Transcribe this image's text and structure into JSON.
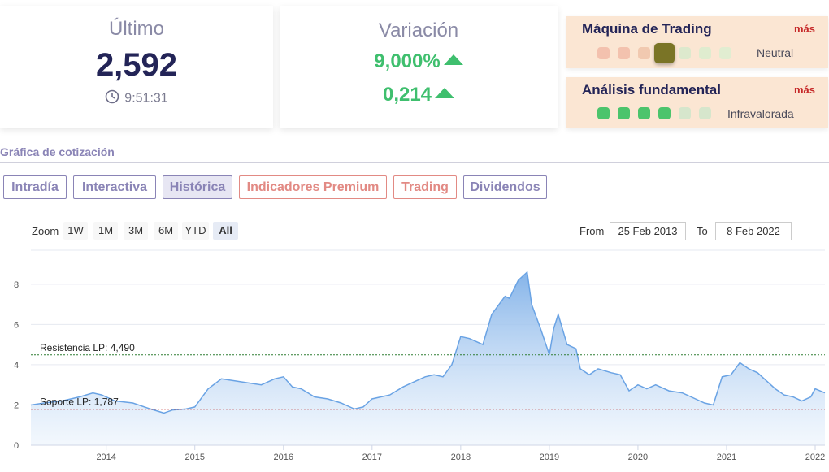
{
  "ultimo": {
    "title": "Último",
    "value": "2,592",
    "time": "9:51:31"
  },
  "variacion": {
    "title": "Variación",
    "percent": "9,000%",
    "absolute": "0,214"
  },
  "trading_machine": {
    "title": "Máquina de Trading",
    "more": "más",
    "status": "Neutral",
    "level": 4,
    "level_max": 7,
    "dot_colors": [
      "#f3c1ae",
      "#f3c2ae",
      "#f1c9b0",
      "#7a7426",
      "#dde9cd",
      "#dfeccf",
      "#e1edd1"
    ]
  },
  "fundamental": {
    "title": "Análisis fundamental",
    "more": "más",
    "status": "Infravalorada",
    "level": 4,
    "level_max": 6,
    "dot_colors": [
      "#4cc46c",
      "#4cc46c",
      "#4cc46c",
      "#4cc46c",
      "#d6e6cc",
      "#d6e6cc"
    ]
  },
  "section_title": "Gráfica de cotización",
  "tabs": [
    {
      "label": "Intradía",
      "style": "purple",
      "active": false
    },
    {
      "label": "Interactiva",
      "style": "purple",
      "active": false
    },
    {
      "label": "Histórica",
      "style": "purple",
      "active": true
    },
    {
      "label": "Indicadores Premium",
      "style": "red",
      "active": false
    },
    {
      "label": "Trading",
      "style": "red",
      "active": false
    },
    {
      "label": "Dividendos",
      "style": "purple",
      "active": false
    }
  ],
  "zoom": {
    "label": "Zoom",
    "buttons": [
      "1W",
      "1M",
      "3M",
      "6M",
      "YTD",
      "All"
    ],
    "selected": "All"
  },
  "range": {
    "from_label": "From",
    "from": "25 Feb 2013",
    "to_label": "To",
    "to": "8 Feb 2022"
  },
  "colors": {
    "accent": "#232457",
    "up": "#3fbf6e",
    "line": "#7fb0e8",
    "resistance": "#2e7d32",
    "support": "#b71c1c"
  },
  "chart_data": {
    "type": "area",
    "x_ticks": [
      "2014",
      "2015",
      "2016",
      "2017",
      "2018",
      "2019",
      "2020",
      "2021",
      "2022"
    ],
    "y_ticks": [
      0,
      2,
      4,
      6,
      8
    ],
    "ylim": [
      0,
      8.8
    ],
    "xlim": [
      2013.15,
      2022.11
    ],
    "grid": true,
    "series": [
      {
        "x": [
          2013.15,
          2013.3,
          2013.5,
          2013.7,
          2013.85,
          2013.95,
          2014.1,
          2014.3,
          2014.5,
          2014.65,
          2014.75,
          2014.9,
          2015.0,
          2015.15,
          2015.3,
          2015.45,
          2015.6,
          2015.75,
          2015.9,
          2016.0,
          2016.1,
          2016.2,
          2016.35,
          2016.5,
          2016.65,
          2016.8,
          2016.9,
          2017.0,
          2017.2,
          2017.35,
          2017.5,
          2017.6,
          2017.7,
          2017.8,
          2017.9,
          2018.0,
          2018.1,
          2018.25,
          2018.35,
          2018.45,
          2018.5,
          2018.55,
          2018.65,
          2018.7,
          2018.75,
          2018.8,
          2018.9,
          2019.0,
          2019.05,
          2019.1,
          2019.2,
          2019.3,
          2019.35,
          2019.45,
          2019.55,
          2019.7,
          2019.8,
          2019.9,
          2020.0,
          2020.1,
          2020.2,
          2020.35,
          2020.5,
          2020.6,
          2020.75,
          2020.85,
          2020.95,
          2021.05,
          2021.15,
          2021.25,
          2021.35,
          2021.45,
          2021.55,
          2021.65,
          2021.75,
          2021.85,
          2021.95,
          2022.0,
          2022.11
        ],
        "y": [
          2.0,
          2.1,
          2.2,
          2.4,
          2.6,
          2.5,
          2.2,
          2.1,
          1.8,
          1.6,
          1.75,
          1.8,
          1.9,
          2.8,
          3.3,
          3.2,
          3.1,
          3.0,
          3.3,
          3.4,
          2.9,
          2.8,
          2.4,
          2.3,
          2.1,
          1.8,
          1.9,
          2.3,
          2.5,
          2.9,
          3.2,
          3.4,
          3.5,
          3.4,
          4.0,
          5.4,
          5.3,
          5.0,
          6.5,
          7.1,
          7.4,
          7.3,
          8.2,
          8.4,
          8.6,
          7.0,
          5.8,
          4.5,
          5.8,
          6.5,
          5.0,
          4.8,
          3.8,
          3.5,
          3.8,
          3.6,
          3.5,
          2.7,
          3.0,
          2.8,
          3.0,
          2.7,
          2.6,
          2.4,
          2.1,
          2.0,
          3.4,
          3.5,
          4.1,
          3.8,
          3.6,
          3.2,
          2.8,
          2.5,
          2.4,
          2.2,
          2.4,
          2.8,
          2.6
        ]
      }
    ],
    "annotations": [
      {
        "label": "Resistencia LP: 4,490",
        "value": 4.49
      },
      {
        "label": "Soporte LP: 1,787",
        "value": 1.787
      }
    ]
  }
}
